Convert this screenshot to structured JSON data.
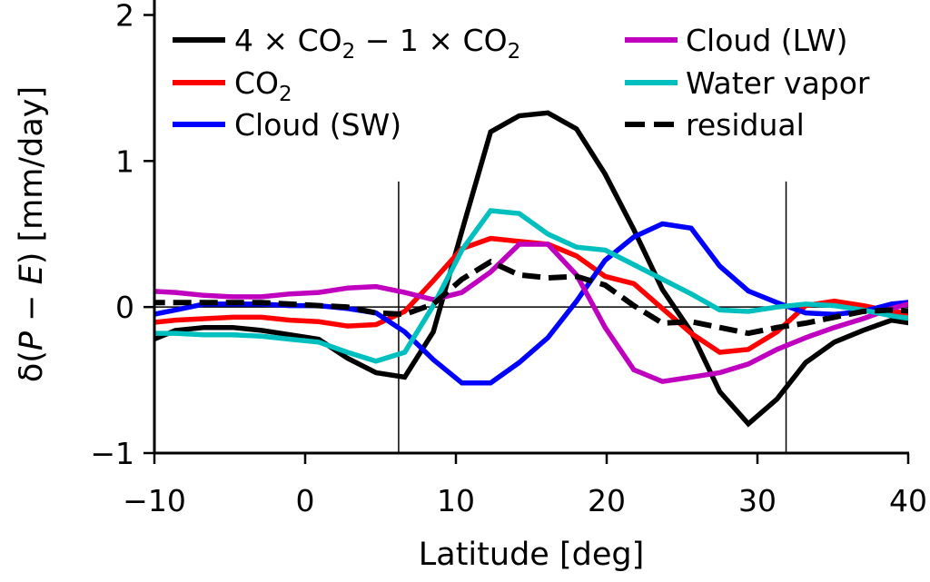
{
  "chart_data": {
    "type": "line",
    "title": "",
    "xlabel": "Latitude [deg]",
    "ylabel": "δ(P − E) [mm/day]",
    "ylabel_parts": {
      "prefix": "δ(",
      "p": "P",
      "minus": " − ",
      "e": "E",
      "suffix": ") [mm/day]"
    },
    "xlim": [
      -10,
      40
    ],
    "ylim": [
      -1,
      2
    ],
    "xticks": [
      -10,
      0,
      10,
      20,
      30,
      40
    ],
    "xtick_labels": [
      "−10",
      "0",
      "10",
      "20",
      "30",
      "40"
    ],
    "yticks": [
      -1,
      0,
      1,
      2
    ],
    "ytick_labels": [
      "−1",
      "0",
      "1",
      "2"
    ],
    "grid": false,
    "legend_placement": "top, two columns",
    "reference_lines": {
      "horizontal_zero": 0,
      "vertical_latitudes": [
        6.2,
        31.9
      ],
      "vertical_top_value": 0.86
    },
    "x": [
      -10.5,
      -8.6,
      -6.7,
      -4.8,
      -2.9,
      -1.0,
      0.9,
      2.8,
      4.7,
      6.6,
      8.5,
      10.4,
      12.3,
      14.2,
      16.1,
      18.0,
      19.9,
      21.8,
      23.7,
      25.6,
      27.5,
      29.4,
      31.3,
      33.2,
      35.1,
      37.0,
      38.9,
      40.8
    ],
    "series": [
      {
        "name": "4 × CO2 − 1 × CO2",
        "legend_label": {
          "a": "4 × CO",
          "sub1": "2",
          "b": " − 1 × CO",
          "sub2": "2"
        },
        "color": "#000000",
        "style": "solid",
        "values": [
          -0.24,
          -0.16,
          -0.14,
          -0.14,
          -0.16,
          -0.19,
          -0.22,
          -0.35,
          -0.45,
          -0.48,
          -0.17,
          0.52,
          1.2,
          1.31,
          1.33,
          1.22,
          0.91,
          0.53,
          0.12,
          -0.17,
          -0.58,
          -0.8,
          -0.63,
          -0.38,
          -0.24,
          -0.16,
          -0.09,
          -0.12
        ]
      },
      {
        "name": "CO2",
        "legend_label": {
          "a": "CO",
          "sub1": "2",
          "b": "",
          "sub2": ""
        },
        "color": "#ff0000",
        "style": "solid",
        "values": [
          -0.11,
          -0.09,
          -0.08,
          -0.07,
          -0.07,
          -0.09,
          -0.1,
          -0.13,
          -0.12,
          -0.03,
          0.18,
          0.4,
          0.47,
          0.45,
          0.43,
          0.35,
          0.21,
          0.16,
          -0.01,
          -0.18,
          -0.31,
          -0.29,
          -0.17,
          0.01,
          0.04,
          0.01,
          -0.03,
          -0.05
        ]
      },
      {
        "name": "Cloud (SW)",
        "legend_label": {
          "a": "Cloud (SW)",
          "sub1": "",
          "b": "",
          "sub2": ""
        },
        "color": "#0000ff",
        "style": "solid",
        "values": [
          -0.06,
          -0.02,
          0.02,
          0.02,
          0.02,
          0.01,
          0.01,
          -0.01,
          -0.04,
          -0.17,
          -0.36,
          -0.52,
          -0.52,
          -0.38,
          -0.21,
          0.04,
          0.32,
          0.48,
          0.57,
          0.54,
          0.28,
          0.11,
          0.03,
          -0.04,
          -0.05,
          -0.03,
          0.02,
          0.04
        ]
      },
      {
        "name": "Cloud (LW)",
        "legend_label": {
          "a": "Cloud (LW)",
          "sub1": "",
          "b": "",
          "sub2": ""
        },
        "color": "#bf00bf",
        "style": "solid",
        "values": [
          0.11,
          0.1,
          0.08,
          0.07,
          0.07,
          0.09,
          0.1,
          0.13,
          0.14,
          0.1,
          0.05,
          0.1,
          0.24,
          0.43,
          0.43,
          0.22,
          -0.14,
          -0.43,
          -0.51,
          -0.48,
          -0.45,
          -0.39,
          -0.29,
          -0.21,
          -0.14,
          -0.08,
          -0.01,
          0.04
        ]
      },
      {
        "name": "Water vapor",
        "legend_label": {
          "a": "Water vapor",
          "sub1": "",
          "b": "",
          "sub2": ""
        },
        "color": "#00bfbf",
        "style": "solid",
        "values": [
          -0.18,
          -0.18,
          -0.19,
          -0.19,
          -0.2,
          -0.22,
          -0.24,
          -0.31,
          -0.37,
          -0.31,
          0.01,
          0.39,
          0.66,
          0.64,
          0.5,
          0.41,
          0.39,
          0.29,
          0.19,
          0.09,
          -0.02,
          -0.03,
          0.0,
          0.02,
          0.01,
          -0.02,
          -0.06,
          -0.09
        ]
      },
      {
        "name": "residual",
        "legend_label": {
          "a": "residual",
          "sub1": "",
          "b": "",
          "sub2": ""
        },
        "color": "#000000",
        "style": "dashed",
        "values": [
          0.03,
          0.03,
          0.03,
          0.03,
          0.03,
          0.02,
          0.01,
          0.0,
          -0.04,
          -0.05,
          0.02,
          0.19,
          0.31,
          0.22,
          0.2,
          0.21,
          0.15,
          0.01,
          -0.11,
          -0.1,
          -0.14,
          -0.18,
          -0.14,
          -0.11,
          -0.07,
          -0.03,
          -0.02,
          -0.03
        ]
      }
    ]
  }
}
